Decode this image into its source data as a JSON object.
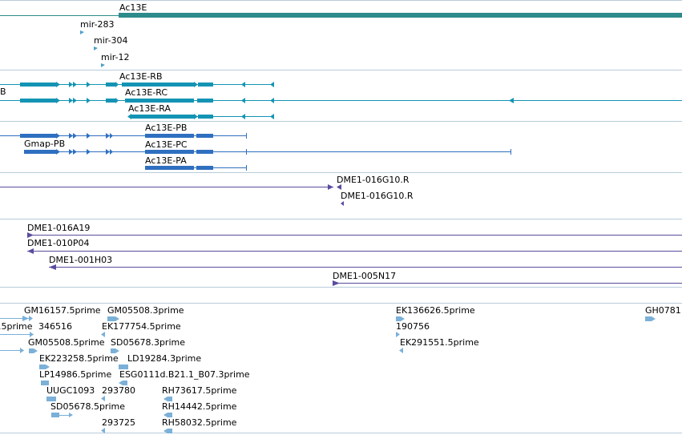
{
  "colors": {
    "teal": "#2E8B8B",
    "transcript": "#1494B4",
    "protein": "#2F6FC0",
    "clone": "#5A4C9E",
    "est": "#7BB0D8",
    "mirna": "#4AA0C8",
    "divider": "#B8CCDA"
  },
  "tracks": {
    "gene": {
      "label": "Ac13E"
    },
    "mirna": {
      "items": [
        "mir-283",
        "mir-304",
        "mir-12"
      ]
    },
    "transcripts": {
      "items": [
        "Ac13E-RB",
        "Ac13E-RC",
        "Ac13E-RA"
      ],
      "cut_label": "B"
    },
    "proteins": {
      "items": [
        "Ac13E-PB",
        "Ac13E-PC",
        "Ac13E-PA"
      ],
      "gmap_label": "Gmap-PB"
    },
    "clone_ends": {
      "items": [
        "DME1-016G10.R",
        "DME1-016G10.R"
      ]
    },
    "clones": {
      "items": [
        "DME1-016A19",
        "DME1-010P04",
        "DME1-001H03",
        "DME1-005N17"
      ]
    },
    "ests": {
      "labels": [
        "GM16157.5prime",
        "GM05508.3prime",
        "EK136626.5prime",
        "GH0781",
        ".5prime",
        "346516",
        "EK177754.5prime",
        "190756",
        "GM05508.5prime",
        "SD05678.3prime",
        "EK291551.5prime",
        "EK223258.5prime",
        "LD19284.3prime",
        "LP14986.5prime",
        "ESG0111d.B21.1_B07.3prime",
        "UUGC1093",
        "293780",
        "RH73617.5prime",
        "SD05678.5prime",
        "RH14442.5prime",
        "293725",
        "RH58032.5prime"
      ]
    }
  }
}
